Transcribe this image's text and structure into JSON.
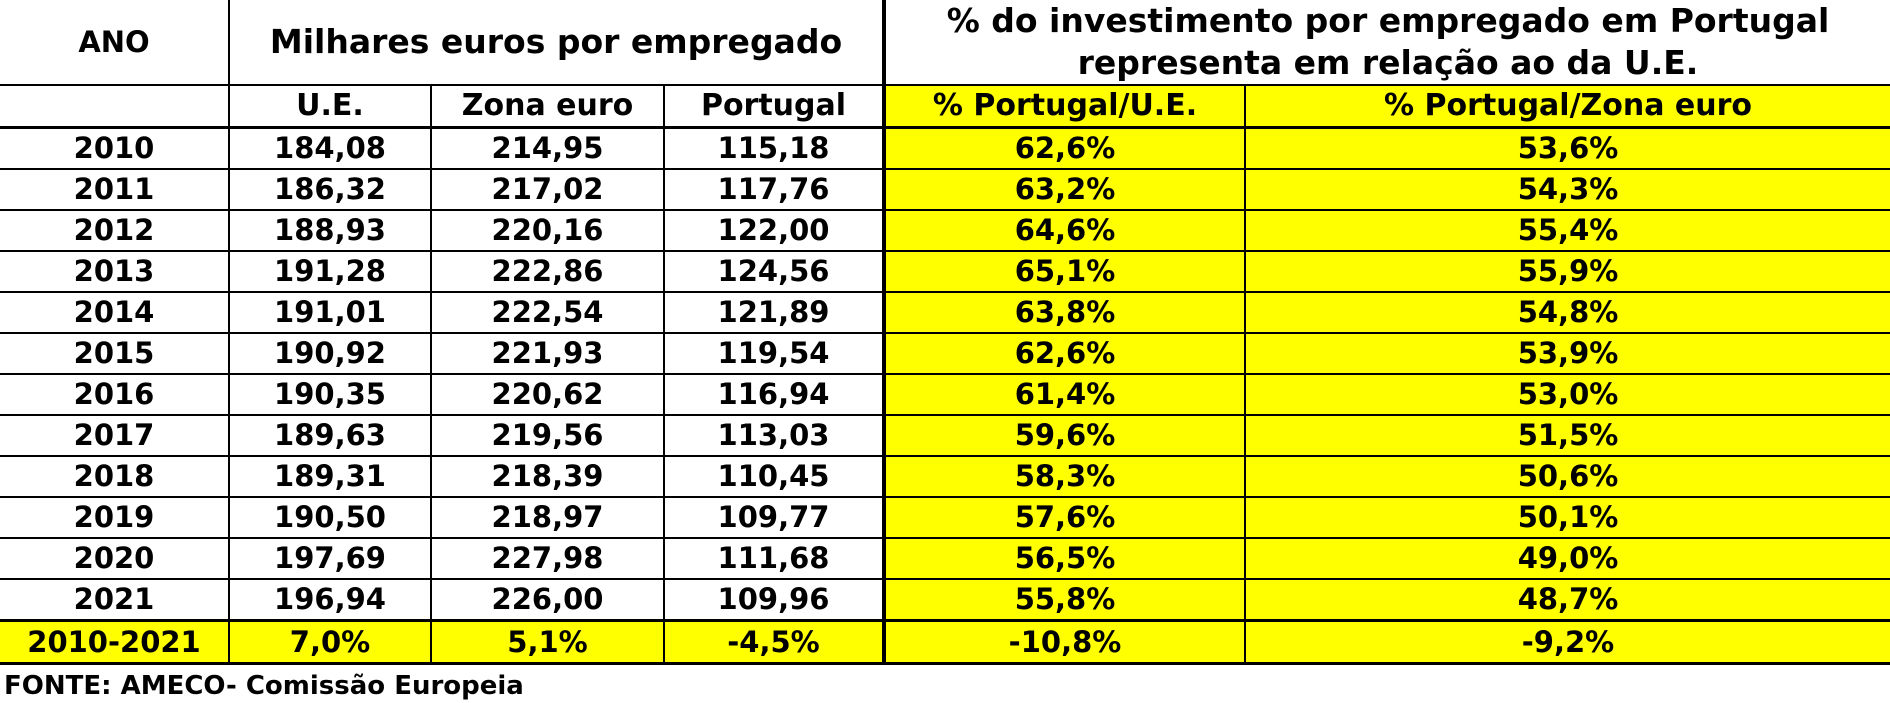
{
  "headers": {
    "year": "ANO",
    "group1": "Milhares euros por empregado",
    "group2": "% do investimento por empregado em Portugal representa em relação ao da U.E.",
    "sub": [
      "U.E.",
      "Zona euro",
      "Portugal",
      "% Portugal/U.E.",
      "% Portugal/Zona euro"
    ]
  },
  "rows": [
    {
      "year": "2010",
      "ue": "184,08",
      "zona": "214,95",
      "pt": "115,18",
      "pt_ue": "62,6%",
      "pt_zona": "53,6%"
    },
    {
      "year": "2011",
      "ue": "186,32",
      "zona": "217,02",
      "pt": "117,76",
      "pt_ue": "63,2%",
      "pt_zona": "54,3%"
    },
    {
      "year": "2012",
      "ue": "188,93",
      "zona": "220,16",
      "pt": "122,00",
      "pt_ue": "64,6%",
      "pt_zona": "55,4%"
    },
    {
      "year": "2013",
      "ue": "191,28",
      "zona": "222,86",
      "pt": "124,56",
      "pt_ue": "65,1%",
      "pt_zona": "55,9%"
    },
    {
      "year": "2014",
      "ue": "191,01",
      "zona": "222,54",
      "pt": "121,89",
      "pt_ue": "63,8%",
      "pt_zona": "54,8%"
    },
    {
      "year": "2015",
      "ue": "190,92",
      "zona": "221,93",
      "pt": "119,54",
      "pt_ue": "62,6%",
      "pt_zona": "53,9%"
    },
    {
      "year": "2016",
      "ue": "190,35",
      "zona": "220,62",
      "pt": "116,94",
      "pt_ue": "61,4%",
      "pt_zona": "53,0%"
    },
    {
      "year": "2017",
      "ue": "189,63",
      "zona": "219,56",
      "pt": "113,03",
      "pt_ue": "59,6%",
      "pt_zona": "51,5%"
    },
    {
      "year": "2018",
      "ue": "189,31",
      "zona": "218,39",
      "pt": "110,45",
      "pt_ue": "58,3%",
      "pt_zona": "50,6%"
    },
    {
      "year": "2019",
      "ue": "190,50",
      "zona": "218,97",
      "pt": "109,77",
      "pt_ue": "57,6%",
      "pt_zona": "50,1%"
    },
    {
      "year": "2020",
      "ue": "197,69",
      "zona": "227,98",
      "pt": "111,68",
      "pt_ue": "56,5%",
      "pt_zona": "49,0%"
    },
    {
      "year": "2021",
      "ue": "196,94",
      "zona": "226,00",
      "pt": "109,96",
      "pt_ue": "55,8%",
      "pt_zona": "48,7%"
    }
  ],
  "total": {
    "year": "2010-2021",
    "ue": "7,0%",
    "zona": "5,1%",
    "pt": "-4,5%",
    "pt_ue": "-10,8%",
    "pt_zona": "-9,2%"
  },
  "source": "FONTE: AMECO- Comissão Europeia",
  "colors": {
    "highlight": "#ffff00",
    "border": "#000000"
  }
}
